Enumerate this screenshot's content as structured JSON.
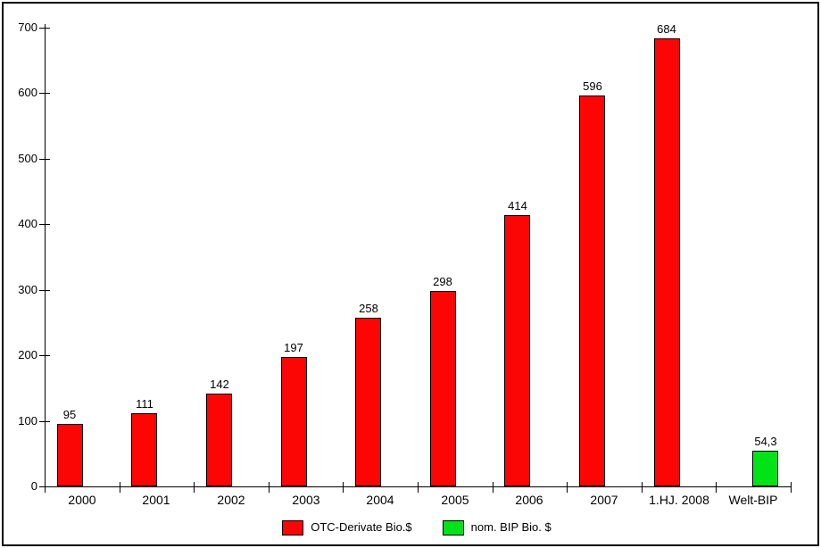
{
  "chart_data": {
    "type": "bar",
    "title": "",
    "xlabel": "",
    "ylabel": "",
    "categories": [
      "2000",
      "2001",
      "2002",
      "2003",
      "2004",
      "2005",
      "2006",
      "2007",
      "1.HJ. 2008",
      "Welt-BIP"
    ],
    "series": [
      {
        "name": "OTC-Derivate Bio.$",
        "color": "#FB0505",
        "values": [
          95,
          111,
          142,
          197,
          258,
          298,
          414,
          596,
          684,
          null
        ],
        "value_labels": [
          "95",
          "111",
          "142",
          "197",
          "258",
          "298",
          "414",
          "596",
          "684",
          null
        ]
      },
      {
        "name": "nom. BIP Bio. $",
        "color": "#00E318",
        "values": [
          null,
          null,
          null,
          null,
          null,
          null,
          null,
          null,
          null,
          54.3
        ],
        "value_labels": [
          null,
          null,
          null,
          null,
          null,
          null,
          null,
          null,
          null,
          "54,3"
        ]
      }
    ],
    "ylim": [
      0,
      700
    ],
    "yticks": [
      0,
      100,
      200,
      300,
      400,
      500,
      600,
      700
    ],
    "ytick_labels": [
      "0",
      "100",
      "200",
      "300",
      "400",
      "500",
      "600",
      "700"
    ],
    "grid": "off",
    "legend_position": "bottom",
    "axis_color": "#000000",
    "text_color": "#000000",
    "background": "#FFFFFF"
  }
}
